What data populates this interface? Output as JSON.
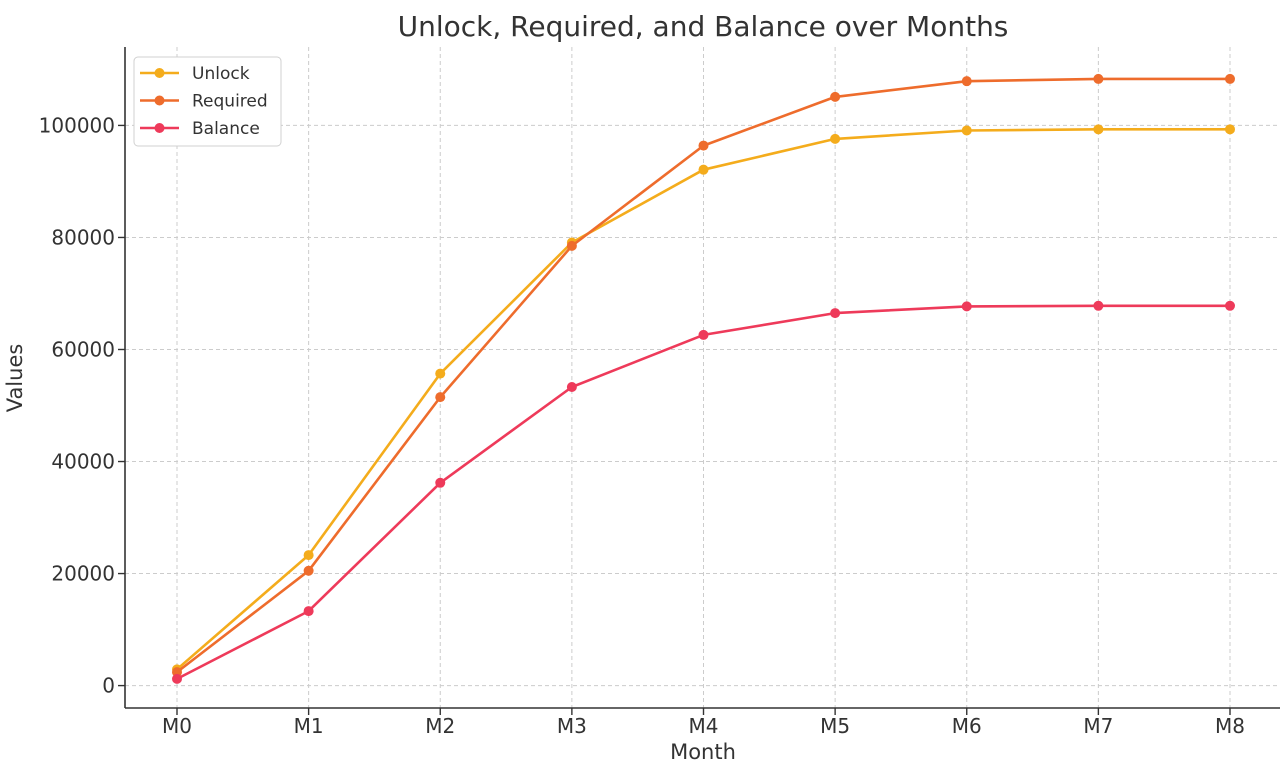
{
  "chart_data": {
    "type": "line",
    "title": "Unlock, Required, and Balance over Months",
    "xlabel": "Month",
    "ylabel": "Values",
    "categories": [
      "M0",
      "M1",
      "M2",
      "M3",
      "M4",
      "M5",
      "M6",
      "M7",
      "M8"
    ],
    "ylim": [
      -4000,
      114000
    ],
    "yticks": [
      0,
      20000,
      40000,
      60000,
      80000,
      100000
    ],
    "ytick_labels": [
      "0",
      "20000",
      "40000",
      "60000",
      "80000",
      "100000"
    ],
    "grid": true,
    "legend_position": "upper-left",
    "series": [
      {
        "name": "Unlock",
        "color": "#F4AC1C",
        "values": [
          2900,
          23300,
          55700,
          79100,
          92100,
          97600,
          99100,
          99300,
          99300
        ]
      },
      {
        "name": "Required",
        "color": "#EE6C2C",
        "values": [
          2400,
          20500,
          51500,
          78500,
          96400,
          105100,
          107900,
          108300,
          108300
        ]
      },
      {
        "name": "Balance",
        "color": "#EE3A5A",
        "values": [
          1200,
          13300,
          36200,
          53300,
          62600,
          66500,
          67700,
          67800,
          67800
        ]
      }
    ]
  }
}
